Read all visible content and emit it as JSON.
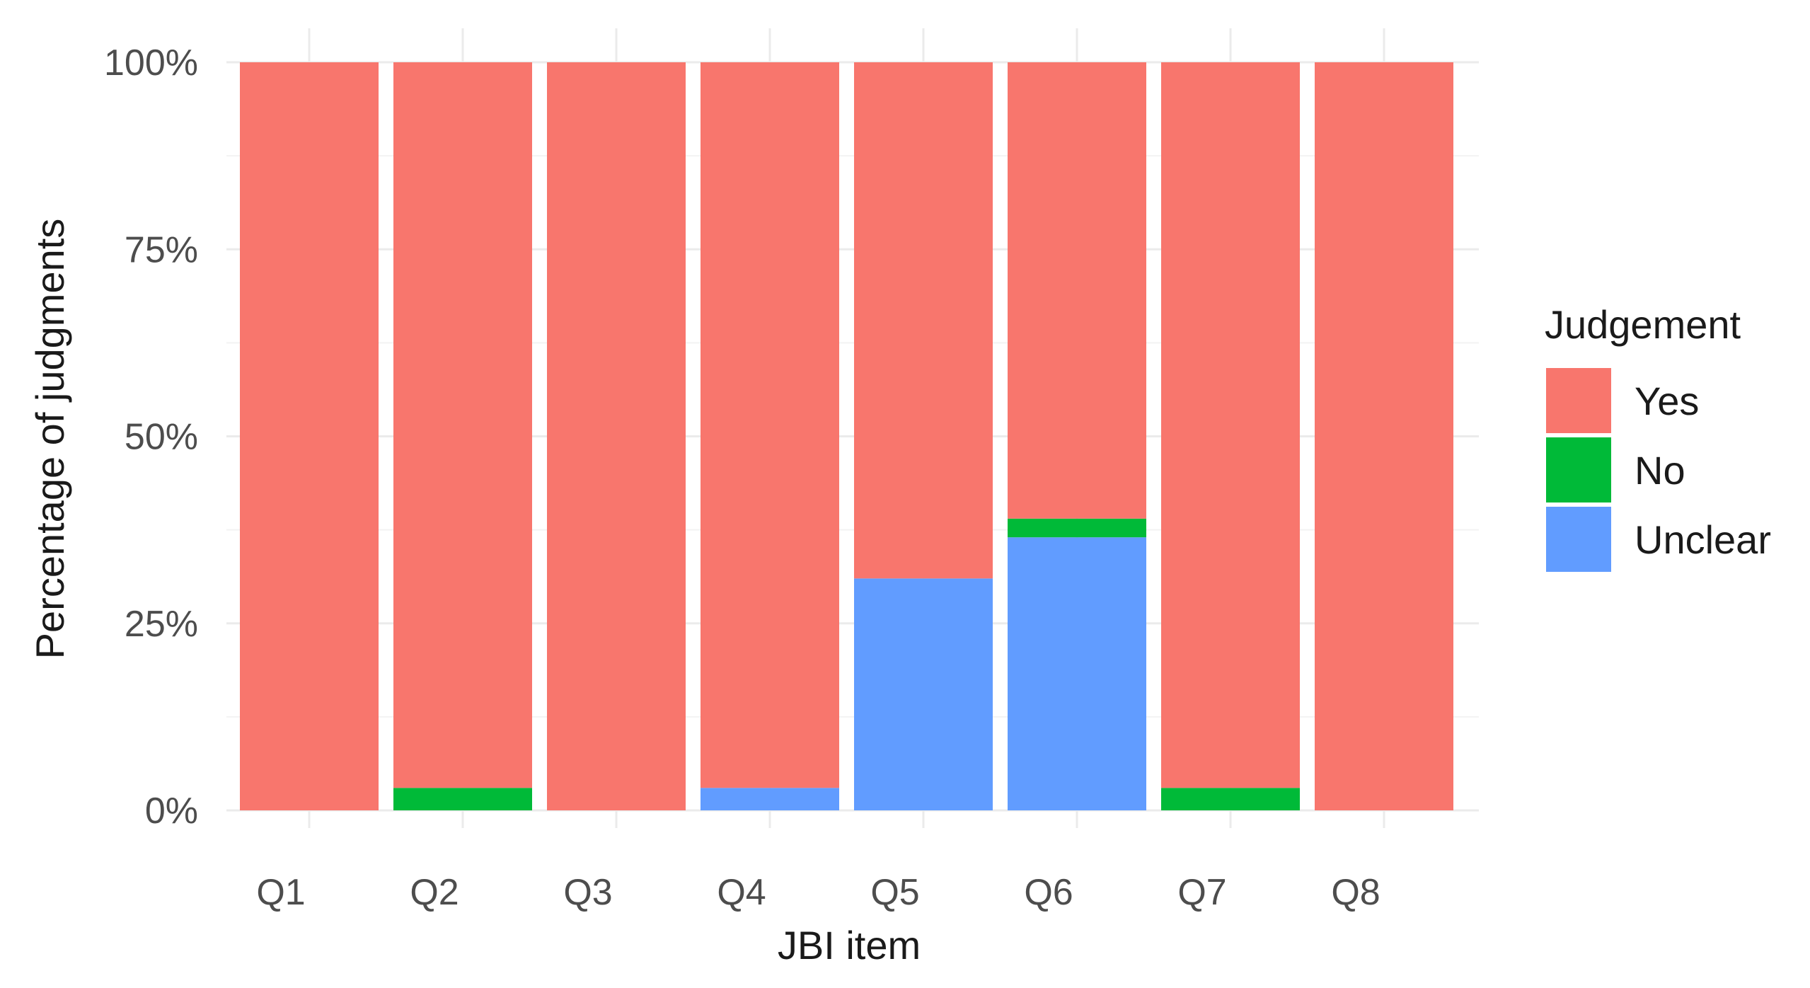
{
  "chart_data": {
    "type": "bar",
    "stacked": true,
    "title": "",
    "xlabel": "JBI item",
    "ylabel": "Percentage of judgments",
    "categories": [
      "Q1",
      "Q2",
      "Q3",
      "Q4",
      "Q5",
      "Q6",
      "Q7",
      "Q8"
    ],
    "ylim": [
      0,
      100
    ],
    "y_ticks": [
      "0%",
      "25%",
      "50%",
      "75%",
      "100%"
    ],
    "y_tick_values": [
      0,
      25,
      50,
      75,
      100
    ],
    "grid": true,
    "legend": {
      "title": "Judgement",
      "placement": "right"
    },
    "series": [
      {
        "name": "Yes",
        "color": "#F8766D",
        "values": [
          100,
          97,
          100,
          97,
          69,
          61,
          97,
          100
        ]
      },
      {
        "name": "No",
        "color": "#00BA38",
        "values": [
          0,
          3,
          0,
          0,
          0,
          2.5,
          3,
          0
        ]
      },
      {
        "name": "Unclear",
        "color": "#619CFF",
        "values": [
          0,
          0,
          0,
          3,
          31,
          36.5,
          0,
          0
        ]
      }
    ],
    "stack_order_bottom_to_top": [
      "Unclear",
      "No",
      "Yes"
    ]
  }
}
